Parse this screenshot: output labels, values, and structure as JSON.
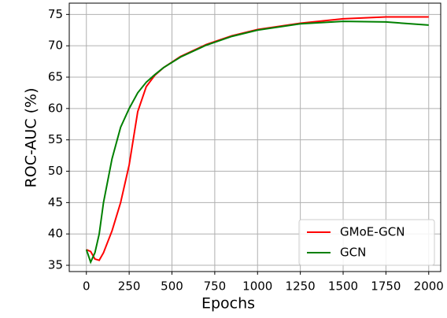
{
  "chart_data": {
    "type": "line",
    "xlabel": "Epochs",
    "ylabel": "ROC-AUC (%)",
    "x": [
      0,
      25,
      50,
      75,
      100,
      150,
      200,
      250,
      300,
      350,
      400,
      450,
      550,
      700,
      850,
      1000,
      1250,
      1500,
      1750,
      2000
    ],
    "series": [
      {
        "name": "GMoE-GCN",
        "color": "#ff0000",
        "values": [
          37.5,
          37.2,
          36,
          35.8,
          37,
          40.5,
          45,
          51,
          59.5,
          63.5,
          65.3,
          66.5,
          68.3,
          70.2,
          71.6,
          72.6,
          73.6,
          74.3,
          74.6,
          74.6
        ]
      },
      {
        "name": "GCN",
        "color": "#008000",
        "values": [
          37.5,
          35.5,
          37,
          40,
          45,
          52,
          57,
          60,
          62.5,
          64.2,
          65.4,
          66.5,
          68.2,
          70.1,
          71.5,
          72.5,
          73.5,
          73.9,
          73.8,
          73.3
        ]
      }
    ],
    "xlim": [
      -100,
      2070
    ],
    "ylim": [
      34,
      76.8
    ],
    "xticks": [
      0,
      250,
      500,
      750,
      1000,
      1250,
      1500,
      1750,
      2000
    ],
    "yticks": [
      35,
      40,
      45,
      50,
      55,
      60,
      65,
      70,
      75
    ],
    "grid": true,
    "legend": "lower right"
  }
}
